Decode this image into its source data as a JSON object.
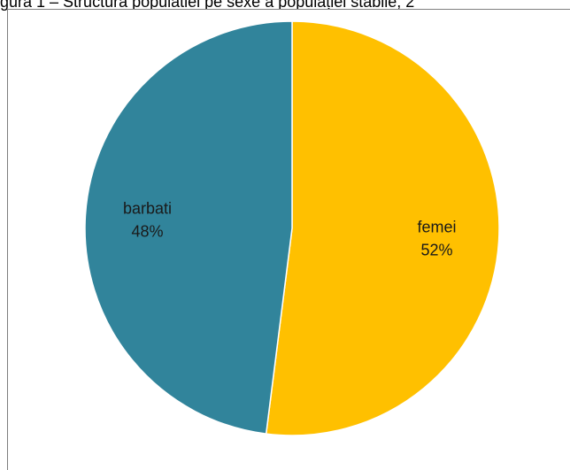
{
  "caption": "gura 1 – Structura populatiei pe sexe a populației stabile, 2",
  "chart_data": {
    "type": "pie",
    "title": "",
    "categories": [
      "femei",
      "barbati"
    ],
    "values": [
      52,
      48
    ],
    "value_labels": [
      "52%",
      "48%"
    ],
    "colors": [
      "#ffc000",
      "#31849b"
    ],
    "start_angle_deg": 0,
    "direction": "clockwise",
    "legend": "none",
    "labels_placement": "inside"
  }
}
